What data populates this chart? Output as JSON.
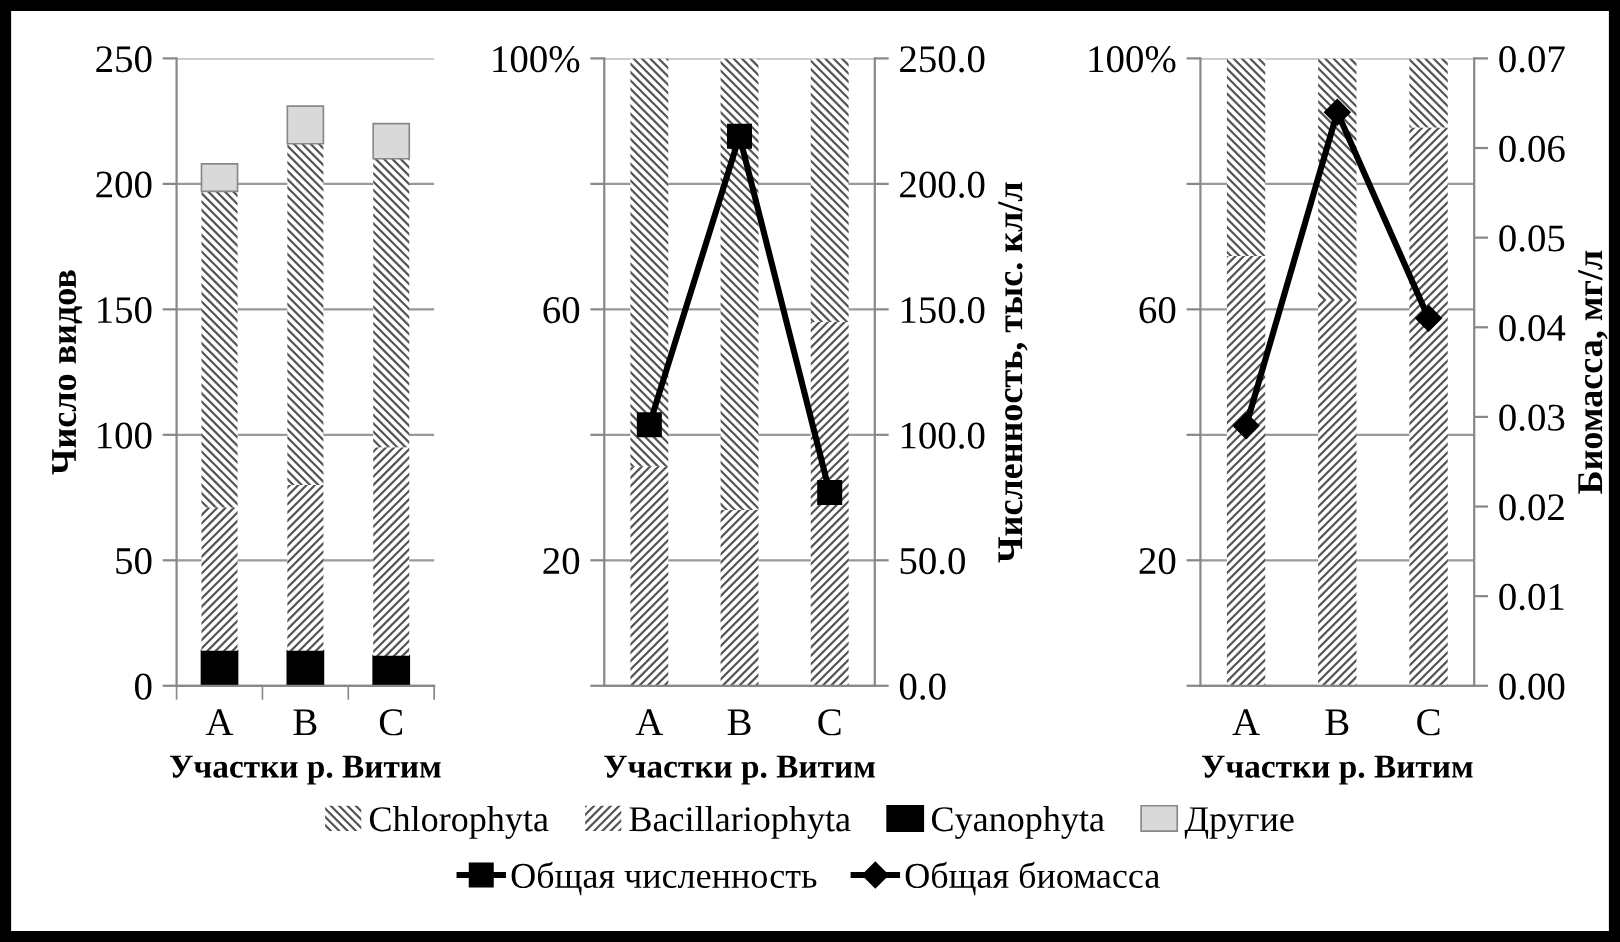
{
  "chart_data": [
    {
      "type": "bar",
      "stacked": true,
      "xlabel": "Участки р. Витим",
      "ylabel": "Число видов",
      "categories": [
        "A",
        "B",
        "C"
      ],
      "ylim": [
        0,
        250
      ],
      "yticks": [
        0,
        50,
        100,
        150,
        200,
        250
      ],
      "grid": "y",
      "legend": "bottom",
      "series": [
        {
          "name": "Cyanophyta",
          "color": "#000000",
          "values": [
            14,
            14,
            12
          ]
        },
        {
          "name": "Bacillariophyta",
          "color": "#555555",
          "values": [
            57,
            66,
            83
          ]
        },
        {
          "name": "Chlorophyta",
          "color": "#555555",
          "values": [
            126,
            136,
            115
          ]
        },
        {
          "name": "Другие",
          "color": "#d9d9d9",
          "values": [
            11,
            15,
            14
          ]
        }
      ]
    },
    {
      "type": "bar",
      "stacked": true,
      "xlabel": "Участки р. Витим",
      "y2label": "Численность, тыс. кл/л",
      "categories": [
        "A",
        "B",
        "C"
      ],
      "ylim": [
        0,
        100
      ],
      "yticks": [
        {
          "value": 0,
          "label": null
        },
        20,
        {
          "value": 40,
          "label": null
        },
        60,
        {
          "value": 80,
          "label": null
        },
        {
          "value": 100,
          "label": "100%"
        }
      ],
      "y2lim": [
        0,
        250
      ],
      "y2ticks": [
        {
          "value": 0,
          "label": "0.0"
        },
        {
          "value": 50,
          "label": "50.0"
        },
        {
          "value": 100,
          "label": "100.0"
        },
        {
          "value": 150,
          "label": "150.0"
        },
        {
          "value": 200,
          "label": "200.0"
        },
        {
          "value": 250,
          "label": "250.0"
        }
      ],
      "grid": "y",
      "legend": "bottom",
      "series": [
        {
          "color": "#555555",
          "values": [
            35,
            28,
            58
          ]
        },
        {
          "color": "#555555",
          "values": [
            65,
            72,
            42
          ]
        },
        {
          "name": "Общая численность",
          "type": "line",
          "axis": "y2",
          "marker": "square",
          "color": "#000000",
          "values": [
            104,
            219,
            77
          ]
        }
      ]
    },
    {
      "type": "bar",
      "stacked": true,
      "xlabel": "Участки р. Витим",
      "y2label": "Биомасса, мг/л",
      "categories": [
        "A",
        "B",
        "C"
      ],
      "ylim": [
        0,
        100
      ],
      "yticks": [
        {
          "value": 0,
          "label": null
        },
        20,
        {
          "value": 40,
          "label": null
        },
        60,
        {
          "value": 80,
          "label": null
        },
        {
          "value": 100,
          "label": "100%"
        }
      ],
      "y2lim": [
        0,
        0.07
      ],
      "y2ticks": [
        {
          "value": 0,
          "label": "0.00"
        },
        {
          "value": 0.01,
          "label": "0.01"
        },
        {
          "value": 0.02,
          "label": "0.02"
        },
        {
          "value": 0.03,
          "label": "0.03"
        },
        {
          "value": 0.04,
          "label": "0.04"
        },
        {
          "value": 0.05,
          "label": "0.05"
        },
        {
          "value": 0.06,
          "label": "0.06"
        },
        {
          "value": 0.07,
          "label": "0.07"
        }
      ],
      "grid": "y",
      "legend": "bottom",
      "series": [
        {
          "color": "#555555",
          "values": [
            68.5,
            61.5,
            89
          ]
        },
        {
          "color": "#555555",
          "values": [
            31.5,
            38.5,
            11
          ]
        },
        {
          "name": "Общая биомасса",
          "type": "line",
          "axis": "y2",
          "marker": "diamond",
          "color": "#000000",
          "values": [
            0.029,
            0.064,
            0.041
          ]
        }
      ]
    }
  ]
}
